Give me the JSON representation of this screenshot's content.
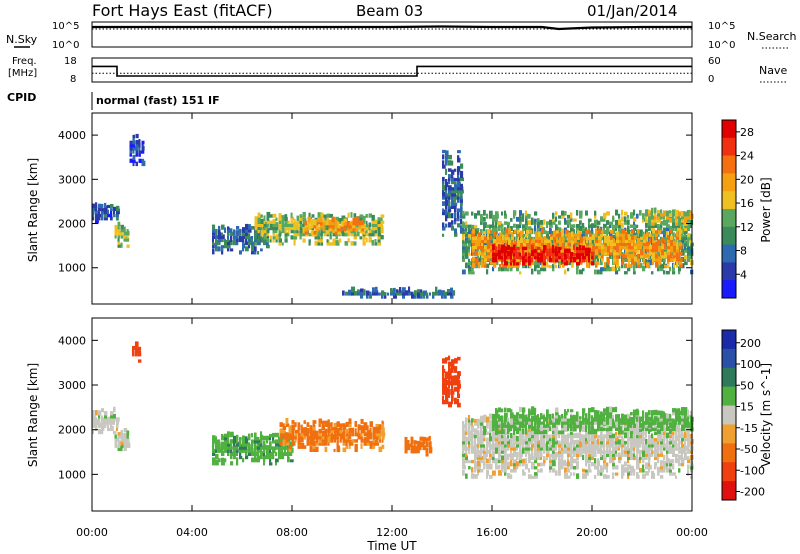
{
  "header": {
    "station": "Fort Hays East (fitACF)",
    "beam": "Beam 03",
    "date": "01/Jan/2014"
  },
  "strip_labels": {
    "nsky": "N.Sky",
    "nsearch": "N.Search",
    "freq_line1": "Freq.",
    "freq_line2": "[MHz]",
    "nave": "Nave",
    "cpid": "CPID",
    "cpid_value": "normal (fast) 151 IF"
  },
  "noise_axis": {
    "left": [
      "10^5",
      "10^0"
    ],
    "right": [
      "10^5",
      "10^0"
    ]
  },
  "freq_axis": {
    "left": [
      "18",
      "8"
    ],
    "right": [
      "60",
      "0"
    ]
  },
  "colors": {
    "power_scale": [
      "#1a1aff",
      "#2a3aa8",
      "#2e6ab0",
      "#3a8a5a",
      "#5aa860",
      "#f0c020",
      "#f5a010",
      "#f57010",
      "#f03010",
      "#e00000"
    ],
    "velocity_scale": [
      "#1a2aa8",
      "#2a50a8",
      "#2e7a5a",
      "#50b040",
      "#c8c8c0",
      "#f0a030",
      "#f07010",
      "#f04010",
      "#e01010"
    ]
  },
  "chart_data": [
    {
      "type": "line",
      "panel": "noise",
      "series": [
        {
          "name": "N.Sky",
          "x": [
            "00:00",
            "02:00",
            "04:00",
            "06:00",
            "08:00",
            "10:00",
            "12:00",
            "14:00",
            "16:00",
            "18:00",
            "18:40",
            "20:00",
            "22:00",
            "24:00"
          ],
          "y_log10": [
            4.0,
            4.0,
            4.0,
            4.0,
            4.0,
            4.0,
            4.0,
            4.1,
            4.0,
            4.0,
            3.6,
            3.9,
            4.0,
            4.0
          ]
        },
        {
          "name": "N.Search",
          "x": [
            "00:00",
            "24:00"
          ],
          "y_log10": [
            3.6,
            3.6
          ]
        }
      ]
    },
    {
      "type": "line",
      "panel": "frequency",
      "series": [
        {
          "name": "Freq. [MHz]",
          "x": [
            "00:00",
            "01:00",
            "01:00",
            "13:00",
            "13:00",
            "24:00"
          ],
          "y": [
            14.5,
            14.5,
            10.5,
            10.5,
            14.5,
            14.5
          ]
        },
        {
          "name": "Nave",
          "x": [
            "00:00",
            "24:00"
          ],
          "y": [
            22,
            22
          ]
        }
      ]
    },
    {
      "type": "heatmap",
      "panel": "power",
      "xlabel": "",
      "ylabel": "Slant Range [km]",
      "xlim": [
        "00:00",
        "24:00"
      ],
      "ylim": [
        180,
        4500
      ],
      "yticks": [
        1000,
        2000,
        3000,
        4000
      ],
      "colorbar": {
        "label": "Power [dB]",
        "ticks": [
          4,
          8,
          12,
          16,
          20,
          24,
          28
        ],
        "range": [
          0,
          30
        ]
      },
      "regions": [
        {
          "t_start": 0.0,
          "t_end": 1.0,
          "r_low": 2000,
          "r_high": 2400,
          "level": 6
        },
        {
          "t_start": 0.9,
          "t_end": 1.5,
          "r_low": 1450,
          "r_high": 1950,
          "level": 14
        },
        {
          "t_start": 1.5,
          "t_end": 2.1,
          "r_low": 3300,
          "r_high": 4000,
          "level": 5
        },
        {
          "t_start": 4.8,
          "t_end": 7.0,
          "r_low": 1300,
          "r_high": 1900,
          "level": 8
        },
        {
          "t_start": 6.5,
          "t_end": 11.6,
          "r_low": 1500,
          "r_high": 2200,
          "level": 14
        },
        {
          "t_start": 8.5,
          "t_end": 10.8,
          "r_low": 1750,
          "r_high": 2100,
          "level": 20
        },
        {
          "t_start": 10.0,
          "t_end": 14.5,
          "r_low": 300,
          "r_high": 450,
          "level": 8
        },
        {
          "t_start": 14.0,
          "t_end": 14.8,
          "r_low": 1700,
          "r_high": 3600,
          "level": 7
        },
        {
          "t_start": 14.8,
          "t_end": 24.0,
          "r_low": 850,
          "r_high": 2200,
          "level": 12
        },
        {
          "t_start": 15.2,
          "t_end": 23.6,
          "r_low": 1000,
          "r_high": 1800,
          "level": 20
        },
        {
          "t_start": 16.0,
          "t_end": 20.0,
          "r_low": 1050,
          "r_high": 1450,
          "level": 28
        },
        {
          "t_start": 22.0,
          "t_end": 24.0,
          "r_low": 1950,
          "r_high": 2300,
          "level": 16
        }
      ]
    },
    {
      "type": "heatmap",
      "panel": "velocity",
      "xlabel": "Time UT",
      "ylabel": "Slant Range [km]",
      "xlim": [
        "00:00",
        "24:00"
      ],
      "xticks": [
        "00:00",
        "04:00",
        "08:00",
        "12:00",
        "16:00",
        "20:00",
        "00:00"
      ],
      "ylim": [
        180,
        4500
      ],
      "yticks": [
        1000,
        2000,
        3000,
        4000
      ],
      "colorbar": {
        "label": "Velocity [m s^-1]",
        "ticks": [
          200,
          100,
          50,
          15,
          -15,
          -50,
          -100,
          -200
        ]
      },
      "regions": [
        {
          "t_start": 0.0,
          "t_end": 1.0,
          "r_low": 1900,
          "r_high": 2400,
          "level": 0
        },
        {
          "t_start": 0.9,
          "t_end": 1.5,
          "r_low": 1450,
          "r_high": 1950,
          "level": 0
        },
        {
          "t_start": 1.6,
          "t_end": 1.9,
          "r_low": 3500,
          "r_high": 3900,
          "level": -150
        },
        {
          "t_start": 4.8,
          "t_end": 8.0,
          "r_low": 1200,
          "r_high": 1900,
          "level": 40
        },
        {
          "t_start": 7.5,
          "t_end": 11.6,
          "r_low": 1500,
          "r_high": 2200,
          "level": -60
        },
        {
          "t_start": 12.5,
          "t_end": 13.5,
          "r_low": 1400,
          "r_high": 1800,
          "level": -80
        },
        {
          "t_start": 14.0,
          "t_end": 14.6,
          "r_low": 2500,
          "r_high": 3600,
          "level": -150
        },
        {
          "t_start": 14.8,
          "t_end": 24.0,
          "r_low": 900,
          "r_high": 2300,
          "level": 0
        },
        {
          "t_start": 16.0,
          "t_end": 24.0,
          "r_low": 1900,
          "r_high": 2400,
          "level": 30
        }
      ]
    }
  ]
}
